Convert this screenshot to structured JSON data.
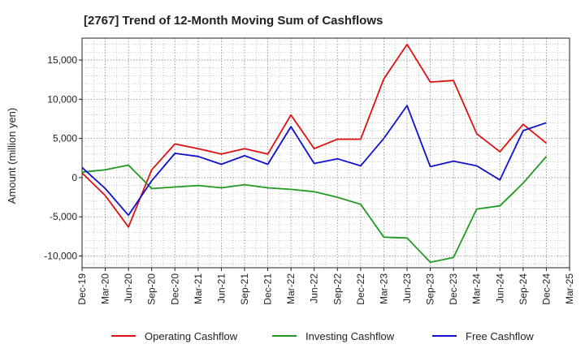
{
  "chart_data": {
    "type": "line",
    "title": "[2767]  Trend of 12-Month Moving Sum of Cashflows",
    "xlabel": "",
    "ylabel": "Amount (million yen)",
    "ylim": [
      -11500,
      17800
    ],
    "yticks": [
      15000,
      10000,
      5000,
      0,
      -5000,
      -10000
    ],
    "ytick_labels": [
      "15,000",
      "10,000",
      "5,000",
      "0",
      "-5,000",
      "-10,000"
    ],
    "categories": [
      "Dec-19",
      "Mar-20",
      "Jun-20",
      "Sep-20",
      "Dec-20",
      "Mar-21",
      "Jun-21",
      "Sep-21",
      "Dec-21",
      "Mar-22",
      "Jun-22",
      "Sep-22",
      "Dec-22",
      "Mar-23",
      "Jun-23",
      "Sep-23",
      "Dec-23",
      "Mar-24",
      "Jun-24",
      "Sep-24",
      "Dec-24",
      "Mar-25"
    ],
    "grid": true,
    "legend_position": "bottom",
    "series": [
      {
        "name": "Operating Cashflow",
        "color": "#dd1111",
        "values": [
          600,
          -2300,
          -6300,
          1000,
          4300,
          3700,
          3000,
          3700,
          3000,
          8000,
          3700,
          4900,
          4900,
          12600,
          17000,
          12200,
          12400,
          5600,
          3300,
          6800,
          4400,
          null
        ]
      },
      {
        "name": "Investing Cashflow",
        "color": "#229922",
        "values": [
          700,
          1000,
          1600,
          -1400,
          -1200,
          -1000,
          -1300,
          -900,
          -1300,
          -1500,
          -1800,
          -2500,
          -3400,
          -7600,
          -7700,
          -10800,
          -10200,
          -4000,
          -3600,
          -700,
          2700,
          null
        ]
      },
      {
        "name": "Free Cashflow",
        "color": "#1111cc",
        "values": [
          1300,
          -1400,
          -4800,
          -400,
          3100,
          2700,
          1700,
          2800,
          1700,
          6500,
          1800,
          2400,
          1500,
          5000,
          9200,
          1400,
          2100,
          1500,
          -300,
          6000,
          7000,
          null
        ]
      }
    ]
  }
}
